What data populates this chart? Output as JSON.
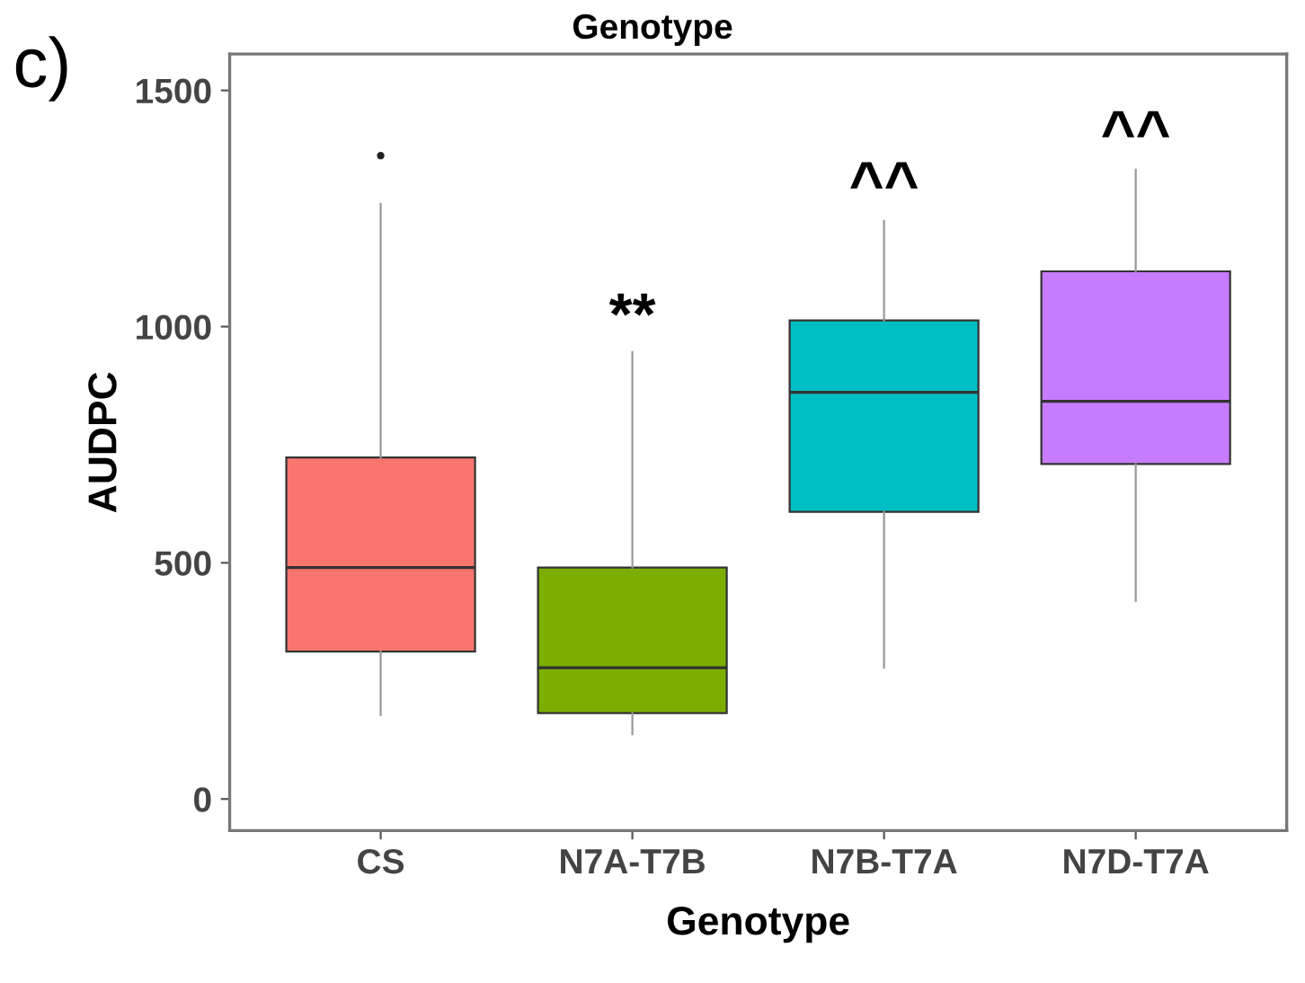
{
  "chart_data": {
    "type": "box",
    "title": "Genotype",
    "xlabel": "Genotype",
    "ylabel": "AUDPC",
    "categories": [
      "CS",
      "N7A-T7B",
      "N7B-T7A",
      "N7D-T7A"
    ],
    "colors": [
      "#f8766d",
      "#7cae00",
      "#00bfc4",
      "#c77cff"
    ],
    "boxes": [
      {
        "low": 178,
        "q1": 312,
        "median": 490,
        "q3": 723,
        "high": 1260,
        "outliers": [
          1362
        ]
      },
      {
        "low": 137,
        "q1": 182,
        "median": 278,
        "q3": 490,
        "high": 946
      },
      {
        "low": 278,
        "q1": 608,
        "median": 861,
        "q3": 1013,
        "high": 1224
      },
      {
        "low": 419,
        "q1": 709,
        "median": 842,
        "q3": 1117,
        "high": 1332
      }
    ],
    "ylim": [
      -67,
      1577
    ],
    "yticks": [
      0,
      500,
      1000,
      1500
    ],
    "grid": false,
    "annotations": [
      "c)",
      {
        "text": "**",
        "x": "N7A-T7B",
        "y": 946
      },
      {
        "text": "^^",
        "x": "N7B-T7A",
        "y": 1224
      },
      {
        "text": "^^",
        "x": "N7D-T7A",
        "y": 1332
      }
    ]
  }
}
